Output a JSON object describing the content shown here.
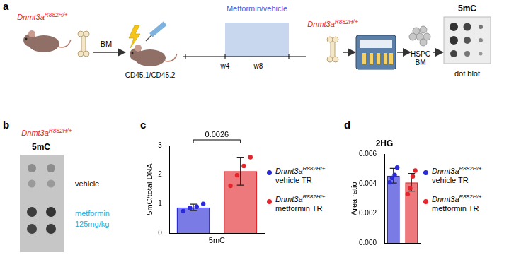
{
  "genotype": {
    "gene": "Dnmt3a",
    "allele": "R882H/+"
  },
  "schematic": {
    "panel": "a",
    "donor_tissue": "BM",
    "recipient": "CD45.1/CD45.2",
    "treatment": "Metformin/vehicle",
    "timepoints": [
      "w4",
      "w8"
    ],
    "sorted_cells": [
      "HSPC",
      "BM"
    ],
    "readout": "5mC",
    "assay": "dot blot"
  },
  "blot": {
    "panel": "b",
    "title": "5mC",
    "rows": [
      {
        "label": "vehicle"
      },
      {
        "label": "metformin",
        "dose": "125mg/kg"
      }
    ]
  },
  "chart_data": [
    {
      "panel": "c",
      "type": "bar",
      "categories": [
        "5mC"
      ],
      "y_label": "5mC/total DNA",
      "ylim": [
        0,
        3
      ],
      "yticks": [
        0,
        1,
        2,
        3
      ],
      "grid": false,
      "legend": "right",
      "series": [
        {
          "name": "vehicle TR",
          "color": "#2a2ad6",
          "values": [
            0.88
          ],
          "errors": [
            0.11
          ],
          "points": [
            [
              0.75,
              0.86,
              0.9,
              1.0
            ]
          ]
        },
        {
          "name": "metformin TR",
          "color": "#e3262c",
          "values": [
            2.12
          ],
          "errors": [
            0.48
          ],
          "points": [
            [
              1.62,
              1.98,
              2.3,
              2.6
            ]
          ]
        }
      ],
      "annotations": [
        {
          "text": "0.0026"
        }
      ]
    },
    {
      "panel": "d",
      "type": "bar",
      "title": "2HG",
      "categories": [
        null
      ],
      "y_label": "Area ratio",
      "ylim": [
        0,
        0.006
      ],
      "yticks": [
        {
          "value": 0,
          "label": "0.000"
        },
        {
          "value": 0.002,
          "label": "0.002"
        },
        {
          "value": 0.004,
          "label": "0.004"
        },
        {
          "value": 0.006,
          "label": "0.006"
        }
      ],
      "grid": false,
      "legend": "right",
      "tick_labels": "y",
      "series": [
        {
          "name": "vehicle TR",
          "color": "#2a2ad6",
          "values": [
            0.00455
          ],
          "errors": [
            0.0005
          ],
          "points": [
            [
              0.0041,
              0.0044,
              0.0046,
              0.0051
            ]
          ]
        },
        {
          "name": "metformin TR",
          "color": "#e3262c",
          "values": [
            0.0041
          ],
          "errors": [
            0.0006
          ],
          "points": [
            [
              0.0033,
              0.0037,
              0.0045,
              0.0049
            ]
          ]
        }
      ]
    }
  ]
}
